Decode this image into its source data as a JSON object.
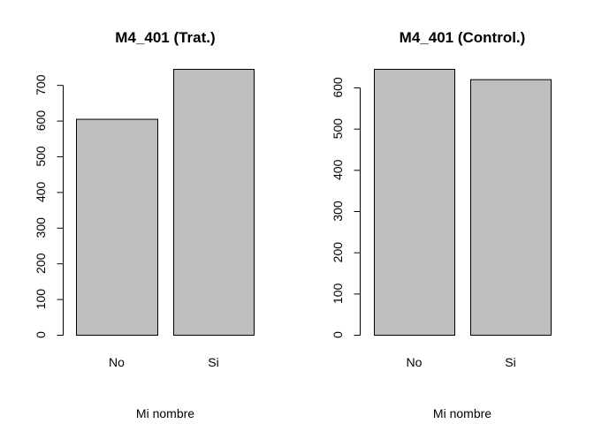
{
  "chart_data": [
    {
      "type": "bar",
      "title": "M4_401 (Trat.)",
      "xlabel": "Mi nombre",
      "ylabel": "",
      "categories": [
        "No",
        "Si"
      ],
      "values": [
        605,
        745
      ],
      "yticks": [
        0,
        100,
        200,
        300,
        400,
        500,
        600,
        700
      ],
      "ylim": [
        0,
        745
      ],
      "bar_color": "#bebebe",
      "grid": false
    },
    {
      "type": "bar",
      "title": "M4_401 (Control.)",
      "xlabel": "Mi nombre",
      "ylabel": "",
      "categories": [
        "No",
        "Si"
      ],
      "values": [
        645,
        620
      ],
      "yticks": [
        0,
        100,
        200,
        300,
        400,
        500,
        600
      ],
      "ylim": [
        0,
        645
      ],
      "bar_color": "#bebebe",
      "grid": false
    }
  ]
}
